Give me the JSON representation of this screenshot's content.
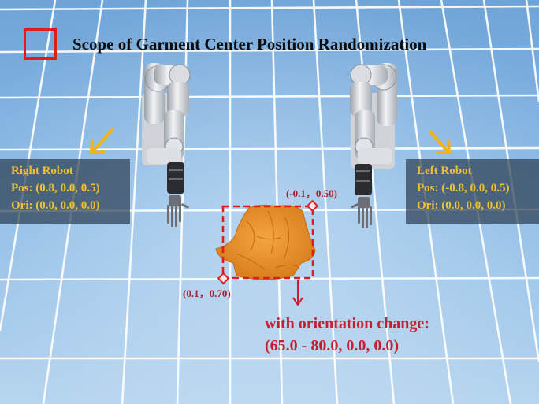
{
  "legend": {
    "title": "Scope of Garment Center Position Randomization",
    "box_color": "#e21b1b"
  },
  "right_robot": {
    "name": "Right Robot",
    "pos": "Pos: (0.8, 0.0, 0.5)",
    "ori": "Ori: (0.0, 0.0, 0.0)"
  },
  "left_robot": {
    "name": "Left Robot",
    "pos": "Pos: (-0.8, 0.0, 0.5)",
    "ori": "Ori: (0.0, 0.0, 0.0)"
  },
  "scope": {
    "corner_top_right": "(-0.1，0.50)",
    "corner_bottom_left": "(0.1，0.70)"
  },
  "orientation": {
    "line1": "with orientation change:",
    "line2": "(65.0 - 80.0, 0.0, 0.0)"
  },
  "colors": {
    "label_text": "#f2c130",
    "scope_dashed": "#e21b1b",
    "annotation": "#c81e32",
    "garment": "#e8922e",
    "grid": "#ffffff",
    "floor": "#7fb0dc"
  }
}
